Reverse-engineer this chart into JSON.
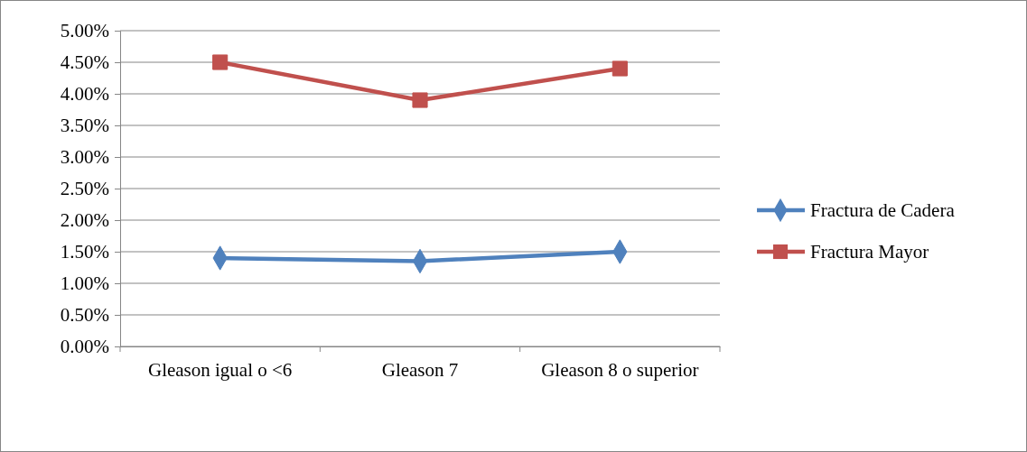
{
  "chart_data": {
    "type": "line",
    "categories": [
      "Gleason igual o <6",
      "Gleason 7",
      "Gleason 8 o superior"
    ],
    "series": [
      {
        "name": "Fractura de Cadera",
        "color": "#4f81bd",
        "marker": "diamond",
        "values": [
          1.4,
          1.35,
          1.5
        ]
      },
      {
        "name": "Fractura Mayor",
        "color": "#c0504d",
        "marker": "square",
        "values": [
          4.5,
          3.9,
          4.4
        ]
      }
    ],
    "ylim": [
      0,
      5
    ],
    "yticks": [
      {
        "value": 0,
        "label": "0.00%"
      },
      {
        "value": 0.5,
        "label": "0.50%"
      },
      {
        "value": 1,
        "label": "1.00%"
      },
      {
        "value": 1.5,
        "label": "1.50%"
      },
      {
        "value": 2,
        "label": "2.00%"
      },
      {
        "value": 2.5,
        "label": "2.50%"
      },
      {
        "value": 3,
        "label": "3.00%"
      },
      {
        "value": 3.5,
        "label": "3.50%"
      },
      {
        "value": 4,
        "label": "4.00%"
      },
      {
        "value": 4.5,
        "label": "4.50%"
      },
      {
        "value": 5,
        "label": "5.00%"
      }
    ],
    "grid": "y",
    "legend": "right",
    "line_style": "solid"
  }
}
